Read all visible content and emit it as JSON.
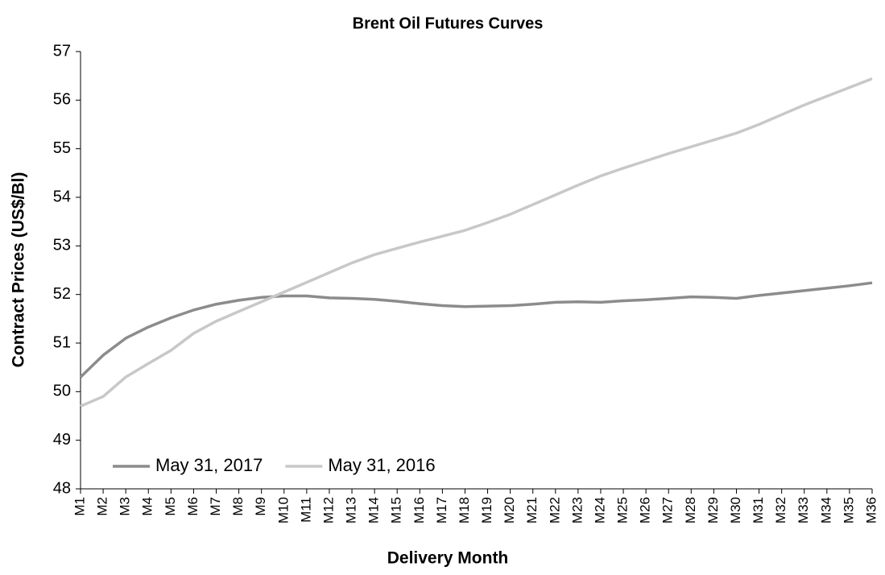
{
  "chart_data": {
    "type": "line",
    "title": "Brent Oil Futures Curves",
    "x_label": "Delivery Month",
    "y_label": "Contract Prices (US$/Bl)",
    "categories": [
      "M1",
      "M2",
      "M3",
      "M4",
      "M5",
      "M6",
      "M7",
      "M8",
      "M9",
      "M10",
      "M11",
      "M12",
      "M13",
      "M14",
      "M15",
      "M16",
      "M17",
      "M18",
      "M19",
      "M20",
      "M21",
      "M22",
      "M23",
      "M24",
      "M25",
      "M26",
      "M27",
      "M28",
      "M29",
      "M30",
      "M31",
      "M32",
      "M33",
      "M34",
      "M35",
      "M36"
    ],
    "series": [
      {
        "name": "May 31, 2017",
        "color": "#8c8c8c",
        "values": [
          50.3,
          50.75,
          51.1,
          51.33,
          51.52,
          51.68,
          51.8,
          51.88,
          51.94,
          51.97,
          51.97,
          51.93,
          51.92,
          51.9,
          51.86,
          51.81,
          51.77,
          51.75,
          51.76,
          51.77,
          51.8,
          51.84,
          51.85,
          51.84,
          51.87,
          51.89,
          51.92,
          51.95,
          51.94,
          51.92,
          51.98,
          52.03,
          52.08,
          52.13,
          52.18,
          52.24
        ]
      },
      {
        "name": "May 31, 2016",
        "color": "#c8c8c8",
        "values": [
          49.7,
          49.9,
          50.3,
          50.58,
          50.85,
          51.2,
          51.45,
          51.65,
          51.85,
          52.05,
          52.25,
          52.45,
          52.65,
          52.82,
          52.95,
          53.08,
          53.2,
          53.32,
          53.48,
          53.65,
          53.85,
          54.05,
          54.25,
          54.44,
          54.6,
          54.75,
          54.9,
          55.04,
          55.18,
          55.32,
          55.5,
          55.7,
          55.9,
          56.08,
          56.26,
          56.44
        ]
      }
    ],
    "ylim": [
      48,
      57
    ],
    "yticks": [
      48,
      49,
      50,
      51,
      52,
      53,
      54,
      55,
      56,
      57
    ],
    "grid": false,
    "legend": "lower left"
  }
}
